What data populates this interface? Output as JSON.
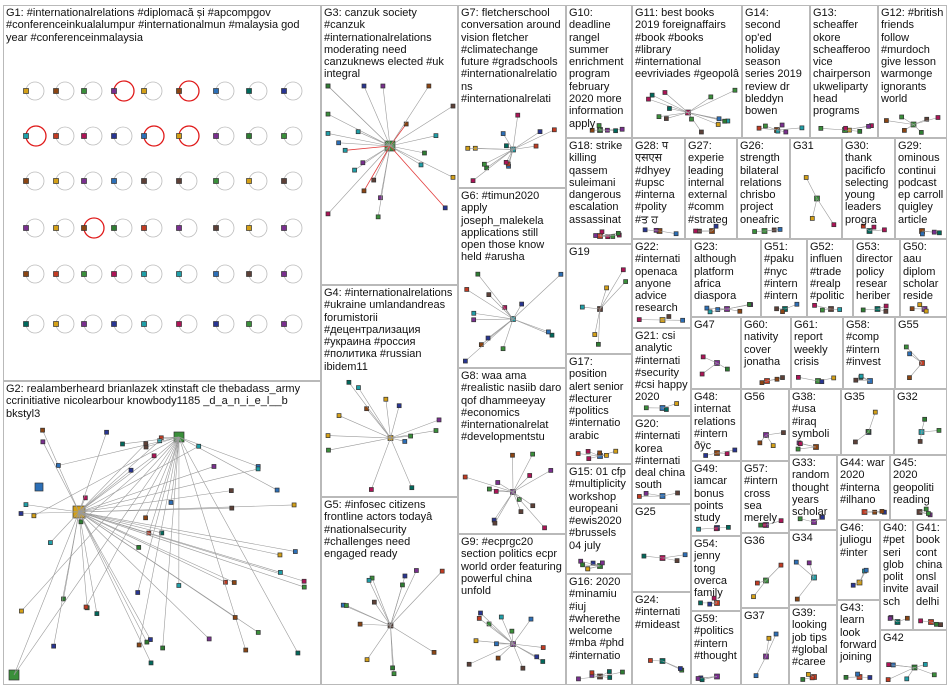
{
  "groups": [
    {
      "id": "G1",
      "label": "G1: #internationalrelations #diplomacă și #apcompgov #conferenceinkualalumpur #internationalmun #malaysia god year #conferenceinmalaysia"
    },
    {
      "id": "G2",
      "label": "G2: realamberheard brianlazek xtinstaft cle thebadass_army ccrinitiative nicolearbour knowbody1185 _d_a_n_i_e_l__b bkstyl3"
    },
    {
      "id": "G3",
      "label": "G3: canzuk society #canzuk #internationalrelations moderating need canzuknews elected #uk integral"
    },
    {
      "id": "G4",
      "label": "G4: #internationalrelations #ukraine umlandandreas forumistorii #децентрализация #украина #россия #политика #russian ibidem11"
    },
    {
      "id": "G5",
      "label": "G5: #infosec citizens frontline actors todayâ #nationalsecurity #challenges need engaged ready"
    },
    {
      "id": "G6",
      "label": "G6: #timun2020 apply joseph_malekela applications still open those know held #arusha"
    },
    {
      "id": "G7",
      "label": "G7: fletcherschool conversation around vision fletcher #climatechange future #gradschools #internationalrelations #internationalrelati"
    },
    {
      "id": "G8",
      "label": "G8: waa ama #realistic nasiib daro qof dhammeeyay #economics #internationalrelat #developmentstu"
    },
    {
      "id": "G9",
      "label": "G9: #ecprgc20 section politics ecpr world order featuring powerful china unfold"
    },
    {
      "id": "G10",
      "label": "G10: deadline rangel summer enrichment program february 2020 more information apply"
    },
    {
      "id": "G11",
      "label": "G11: best books 2019 foreignaffairs #book #books #library #international eevriviades #geopolâ"
    },
    {
      "id": "G12",
      "label": "G12: #british friends follow #murdoch give lesson warmonge ignorants world"
    },
    {
      "id": "G13",
      "label": "G13: scheaffer okore scheafferoo vice chairperson ukweliparty head programs"
    },
    {
      "id": "G14",
      "label": "G14: second op'ed holiday season series 2019 review dr bleddyn bowen"
    },
    {
      "id": "G15",
      "label": "G15: 01 cfp #multiplicity workshop europeani #ewis2020 #brussels 04 july"
    },
    {
      "id": "G16",
      "label": "G16: 2020 #minamiu #iuj #wherethe welcome #mba #phd #internatio"
    },
    {
      "id": "G17",
      "label": "G17: position alert senior #lecturer #politics #internatio arabic"
    },
    {
      "id": "G18",
      "label": "G18: strike killing qassem suleimani dangerous escalation assassinat"
    },
    {
      "id": "G19",
      "label": "G19"
    },
    {
      "id": "G20",
      "label": "G20: #internati korea #internati deal china south"
    },
    {
      "id": "G21",
      "label": "G21: csi analytic #internati #security #csi happy 2020"
    },
    {
      "id": "G22",
      "label": "G22: #internati openaca anyone advice research"
    },
    {
      "id": "G23",
      "label": "G23: although platform africa diaspora"
    },
    {
      "id": "G24",
      "label": "G24: #internati #mideast"
    },
    {
      "id": "G25",
      "label": "G25"
    },
    {
      "id": "G26",
      "label": "G26: strength bilateral relations chrisbo project oneafric"
    },
    {
      "id": "G27",
      "label": "G27: experie leading internal external #comm #strateg"
    },
    {
      "id": "G28",
      "label": "G28: प एसएस #dhyey #upsc #interna #polity #ਤ ਹ"
    },
    {
      "id": "G29",
      "label": "G29: ominous continui podcast ep carroll quigley article"
    },
    {
      "id": "G30",
      "label": "G30: thank pacificfo selecting young leaders progra"
    },
    {
      "id": "G31",
      "label": "G31"
    },
    {
      "id": "G32",
      "label": "G32"
    },
    {
      "id": "G33",
      "label": "G33: random thought years scholar"
    },
    {
      "id": "G34",
      "label": "G34"
    },
    {
      "id": "G35",
      "label": "G35"
    },
    {
      "id": "G36",
      "label": "G36"
    },
    {
      "id": "G37",
      "label": "G37"
    },
    {
      "id": "G38",
      "label": "G38: #usa #iraq symboli"
    },
    {
      "id": "G39",
      "label": "G39: looking job tips #global #caree"
    },
    {
      "id": "G40",
      "label": "G40: #pet seri glob polit invite sch"
    },
    {
      "id": "G41",
      "label": "G41: book cont china onsl avail delhi"
    },
    {
      "id": "G42",
      "label": "G42"
    },
    {
      "id": "G43",
      "label": "G43: learn look forward joining"
    },
    {
      "id": "G44",
      "label": "G44: war 2020 #interna #ilhano"
    },
    {
      "id": "G45",
      "label": "G45: 2020 geopoliti reading"
    },
    {
      "id": "G46",
      "label": "G46: juliogu #inter"
    },
    {
      "id": "G47",
      "label": "G47"
    },
    {
      "id": "G48",
      "label": "G48: internat relations #intern ðÿc"
    },
    {
      "id": "G49",
      "label": "G49: iamcar bonus points study"
    },
    {
      "id": "G50",
      "label": "G50: aau diplom scholar reside"
    },
    {
      "id": "G51",
      "label": "G51: #paku #nyc #intern #intern"
    },
    {
      "id": "G52",
      "label": "G52: influen #trade #realp #politic"
    },
    {
      "id": "G53",
      "label": "G53: director policy resear heriber"
    },
    {
      "id": "G54",
      "label": "G54: jenny tong overca family"
    },
    {
      "id": "G55",
      "label": "G55"
    },
    {
      "id": "G56",
      "label": "G56"
    },
    {
      "id": "G57",
      "label": "G57: #intern cross sea merely"
    },
    {
      "id": "G58",
      "label": "G58: #comp #intern #invest"
    },
    {
      "id": "G59",
      "label": "G59: #politics #intern #thought"
    },
    {
      "id": "G60",
      "label": "G60: nativity cover jonatha"
    },
    {
      "id": "G61",
      "label": "G61: report weekly crisis"
    }
  ],
  "colors": {
    "border": "#b9b9b9",
    "edge": "#9a9a9a",
    "highlight_edge": "#e23b3b",
    "node_palette": [
      "#2c6fb7",
      "#3a8f3a",
      "#7a2f8f",
      "#c23b22",
      "#1f9fa8",
      "#d4a017",
      "#8b4513",
      "#283593",
      "#2e7d32",
      "#ad1457",
      "#00695c",
      "#5d4037"
    ]
  }
}
